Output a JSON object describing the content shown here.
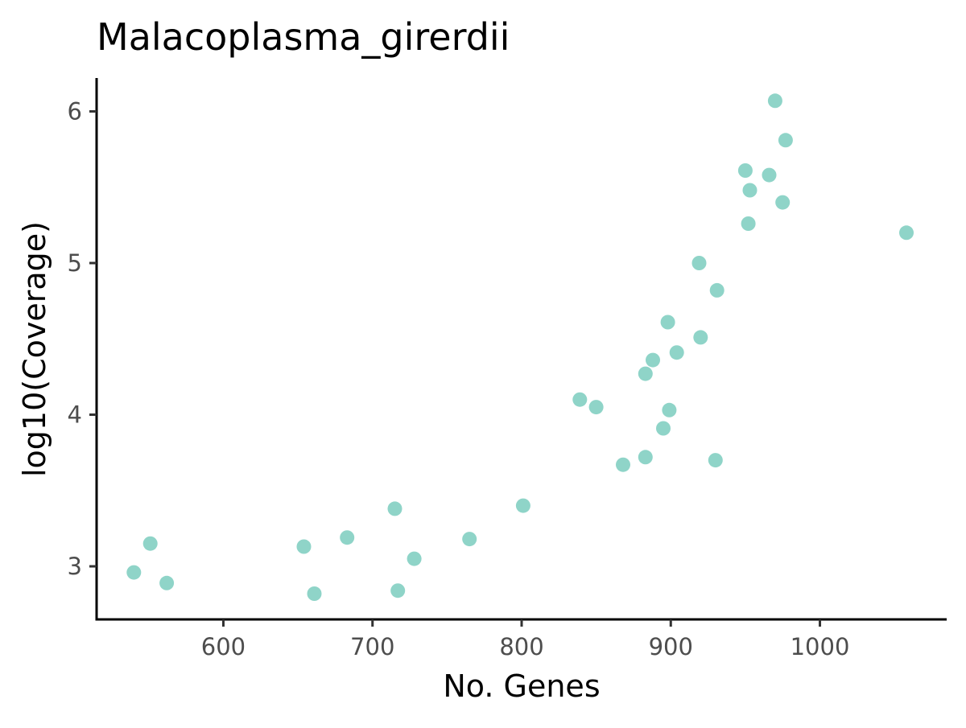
{
  "chart_data": {
    "type": "scatter",
    "title": "Malacoplasma_girerdii",
    "xlabel": "No. Genes",
    "ylabel": "log10(Coverage)",
    "xlim": [
      515,
      1085
    ],
    "ylim": [
      2.65,
      6.22
    ],
    "xticks": [
      600,
      700,
      800,
      900,
      1000
    ],
    "xtick_labels": [
      "600",
      "700",
      "800",
      "900",
      "1000"
    ],
    "yticks": [
      3,
      4,
      5,
      6
    ],
    "ytick_labels": [
      "3",
      "4",
      "5",
      "6"
    ],
    "grid": false,
    "legend": "none",
    "point_color": "#8fd4c8",
    "series": [
      {
        "points": [
          {
            "x": 540,
            "y": 2.96
          },
          {
            "x": 551,
            "y": 3.15
          },
          {
            "x": 562,
            "y": 2.89
          },
          {
            "x": 654,
            "y": 3.13
          },
          {
            "x": 661,
            "y": 2.82
          },
          {
            "x": 683,
            "y": 3.19
          },
          {
            "x": 715,
            "y": 3.38
          },
          {
            "x": 717,
            "y": 2.84
          },
          {
            "x": 728,
            "y": 3.05
          },
          {
            "x": 765,
            "y": 3.18
          },
          {
            "x": 801,
            "y": 3.4
          },
          {
            "x": 839,
            "y": 4.1
          },
          {
            "x": 850,
            "y": 4.05
          },
          {
            "x": 868,
            "y": 3.67
          },
          {
            "x": 883,
            "y": 3.72
          },
          {
            "x": 883,
            "y": 4.27
          },
          {
            "x": 888,
            "y": 4.36
          },
          {
            "x": 895,
            "y": 3.91
          },
          {
            "x": 898,
            "y": 4.61
          },
          {
            "x": 899,
            "y": 4.03
          },
          {
            "x": 904,
            "y": 4.41
          },
          {
            "x": 919,
            "y": 5.0
          },
          {
            "x": 920,
            "y": 4.51
          },
          {
            "x": 930,
            "y": 3.7
          },
          {
            "x": 931,
            "y": 4.82
          },
          {
            "x": 950,
            "y": 5.61
          },
          {
            "x": 952,
            "y": 5.26
          },
          {
            "x": 953,
            "y": 5.48
          },
          {
            "x": 966,
            "y": 5.58
          },
          {
            "x": 970,
            "y": 6.07
          },
          {
            "x": 975,
            "y": 5.4
          },
          {
            "x": 977,
            "y": 5.81
          },
          {
            "x": 1058,
            "y": 5.2
          }
        ]
      }
    ]
  }
}
